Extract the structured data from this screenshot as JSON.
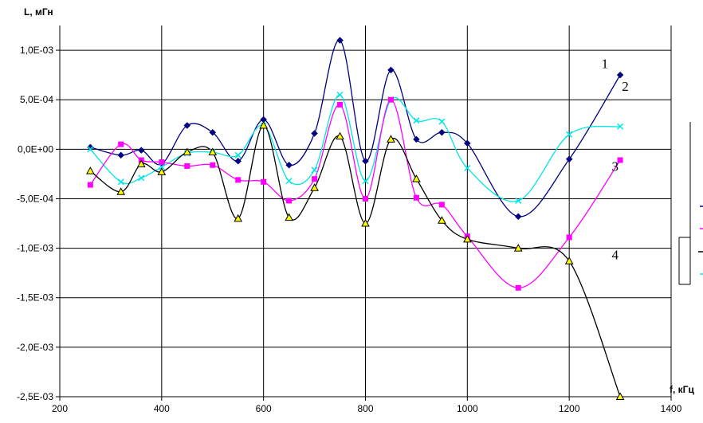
{
  "chart_data": {
    "type": "line",
    "title": "",
    "xlabel": "f, кГц",
    "ylabel": "L, мГн",
    "xlim": [
      200,
      1400
    ],
    "ylim": [
      -0.0025,
      0.00125
    ],
    "xticks": [
      {
        "v": 200,
        "label": "200"
      },
      {
        "v": 400,
        "label": "400"
      },
      {
        "v": 600,
        "label": "600"
      },
      {
        "v": 800,
        "label": "800"
      },
      {
        "v": 1000,
        "label": "1000"
      },
      {
        "v": 1200,
        "label": "1200"
      },
      {
        "v": 1400,
        "label": "1400"
      }
    ],
    "yticks": [
      {
        "v": 0.001,
        "label": "1,0E-03"
      },
      {
        "v": 0.0005,
        "label": "5,0E-04"
      },
      {
        "v": 0,
        "label": "0,0E+00"
      },
      {
        "v": -0.0005,
        "label": "-5,0E-04"
      },
      {
        "v": -0.001,
        "label": "-1,0E-03"
      },
      {
        "v": -0.0015,
        "label": "-1,5E-03"
      },
      {
        "v": -0.002,
        "label": "-2,0E-03"
      },
      {
        "v": -0.0025,
        "label": "-2,5E-03"
      }
    ],
    "grid": true,
    "series": [
      {
        "color": "#000080",
        "marker": "diamond",
        "x": [
          260,
          320,
          360,
          400,
          450,
          500,
          550,
          600,
          650,
          700,
          750,
          800,
          850,
          900,
          950,
          1000,
          1100,
          1200,
          1300
        ],
        "y": [
          2e-05,
          -6e-05,
          -1e-05,
          -0.00015,
          0.00024,
          0.00017,
          -0.00012,
          0.0003,
          -0.00016,
          0.00016,
          0.0011,
          -0.00012,
          0.0008,
          0.0001,
          0.00017,
          6e-05,
          -0.00068,
          -0.0001,
          0.00075
        ]
      },
      {
        "color": "#00e6e6",
        "marker": "x",
        "x": [
          260,
          320,
          360,
          400,
          450,
          500,
          550,
          600,
          650,
          700,
          750,
          800,
          850,
          900,
          950,
          1000,
          1100,
          1200,
          1300
        ],
        "y": [
          0.0,
          -0.00033,
          -0.00029,
          -0.00018,
          -4e-05,
          -3e-05,
          -6e-05,
          0.00024,
          -0.00032,
          -0.00021,
          0.00055,
          -0.00032,
          0.0005,
          0.00029,
          0.00028,
          -0.00019,
          -0.00052,
          0.00015,
          0.00023
        ]
      },
      {
        "color": "#ff00ff",
        "marker": "square",
        "x": [
          260,
          320,
          360,
          400,
          450,
          500,
          550,
          600,
          650,
          700,
          750,
          800,
          850,
          900,
          950,
          1000,
          1100,
          1200,
          1300
        ],
        "y": [
          -0.00036,
          5e-05,
          -0.00011,
          -0.00013,
          -0.00017,
          -0.00016,
          -0.00031,
          -0.00033,
          -0.00052,
          -0.0003,
          0.00045,
          -0.0005,
          0.0005,
          -0.00049,
          -0.00056,
          -0.00088,
          -0.0014,
          -0.00089,
          -0.00011
        ]
      },
      {
        "color": "#000000",
        "marker": "triangle",
        "fill": "#ffff00",
        "x": [
          260,
          320,
          360,
          400,
          450,
          500,
          550,
          600,
          650,
          700,
          750,
          800,
          850,
          900,
          950,
          1000,
          1100,
          1200,
          1300
        ],
        "y": [
          -0.00022,
          -0.00043,
          -0.00015,
          -0.00023,
          -3e-05,
          -3e-05,
          -0.0007,
          0.00024,
          -0.00069,
          -0.00039,
          0.00013,
          -0.00075,
          0.0001,
          -0.0003,
          -0.00072,
          -0.00091,
          -0.001,
          -0.00113,
          -0.0025
        ]
      }
    ],
    "annotations": [
      {
        "text": "1",
        "x": 1270,
        "y": 0.00082
      },
      {
        "text": "2",
        "x": 1310,
        "y": 0.00059
      },
      {
        "text": "3",
        "x": 1290,
        "y": -0.00022
      },
      {
        "text": "4",
        "x": 1290,
        "y": -0.00111
      }
    ]
  }
}
